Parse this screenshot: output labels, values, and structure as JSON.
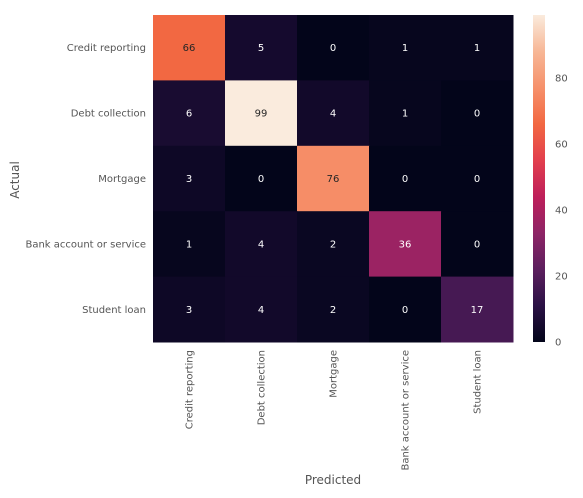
{
  "chart_data": {
    "type": "heatmap",
    "title": "",
    "xlabel": "Predicted",
    "ylabel": "Actual",
    "x_categories": [
      "Credit reporting",
      "Debt collection",
      "Mortgage",
      "Bank account or service",
      "Student loan"
    ],
    "y_categories": [
      "Credit reporting",
      "Debt collection",
      "Mortgage",
      "Bank account or service",
      "Student loan"
    ],
    "values": [
      [
        66,
        5,
        0,
        1,
        1
      ],
      [
        6,
        99,
        4,
        1,
        0
      ],
      [
        3,
        0,
        76,
        0,
        0
      ],
      [
        1,
        4,
        2,
        36,
        0
      ],
      [
        3,
        4,
        2,
        0,
        17
      ]
    ],
    "annotations": true,
    "colormap": "rocket",
    "value_range": [
      0,
      99
    ],
    "colorbar": {
      "ticks": [
        0,
        20,
        40,
        60,
        80
      ],
      "labels": [
        "0",
        "20",
        "40",
        "60",
        "80"
      ]
    },
    "colormap_stops": [
      "#03051a",
      "#2b1145",
      "#5c1f5e",
      "#8e2466",
      "#be1f5a",
      "#e23f4d",
      "#f26842",
      "#f6916b",
      "#f7b796",
      "#faebdd"
    ]
  }
}
